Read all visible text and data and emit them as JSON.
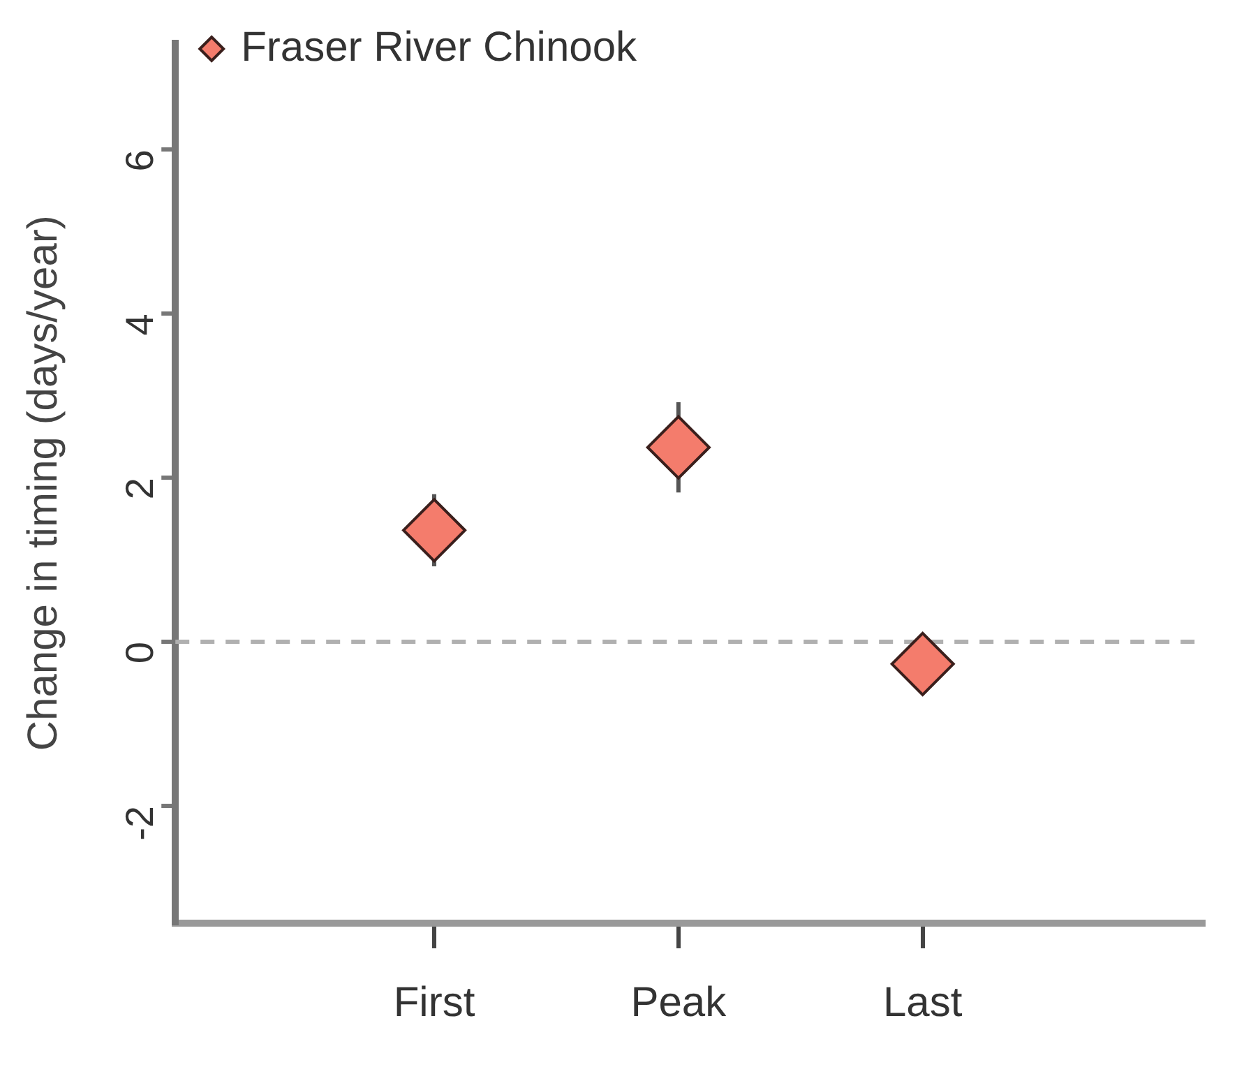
{
  "chart_data": {
    "type": "scatter",
    "ylabel": "Change in timing (days/year)",
    "categories": [
      "First",
      "Peak",
      "Last"
    ],
    "series": [
      {
        "name": "Fraser River Chinook",
        "color": "#f47c6c",
        "values": [
          1.36,
          2.37,
          -0.27
        ],
        "errors": [
          0.44,
          0.55,
          null
        ]
      }
    ],
    "ylim": [
      -3.43,
      7.3
    ],
    "yticks": [
      -2,
      0,
      2,
      4,
      6
    ],
    "ref_lines": [
      {
        "axis": "y",
        "value": 0,
        "line_style": "dashed",
        "color": "#b0b0b0"
      }
    ],
    "marker": "diamond",
    "legend": "top left",
    "grid": false
  }
}
